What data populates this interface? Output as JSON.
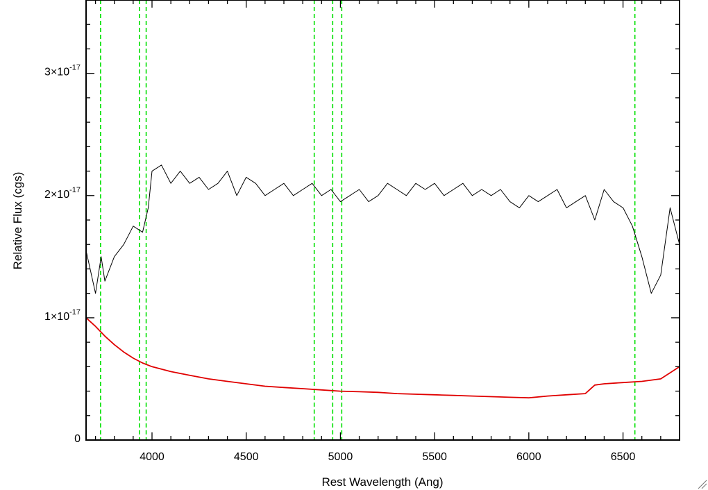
{
  "chart_data": {
    "type": "line",
    "xlabel": "Rest Wavelength (Ang)",
    "ylabel": "Relative Flux (cgs)",
    "xlim": [
      3650,
      6800
    ],
    "ylim": [
      0,
      3.6e-17
    ],
    "x_ticks": [
      4000,
      4500,
      5000,
      5500,
      6000,
      6500
    ],
    "x_tick_labels": [
      "4000",
      "4500",
      "5000",
      "5500",
      "6000",
      "6500"
    ],
    "y_ticks": [
      0,
      1e-17,
      2e-17,
      3e-17
    ],
    "y_tick_labels": [
      {
        "main": "0",
        "exp": ""
      },
      {
        "main": "1×10",
        "exp": "-17"
      },
      {
        "main": "2×10",
        "exp": "-17"
      },
      {
        "main": "3×10",
        "exp": "-17"
      }
    ],
    "colors": {
      "spectrum": "#000000",
      "model": "#e00000",
      "lines": "#00e000"
    },
    "line_markers": [
      3727,
      3933,
      3969,
      4861,
      4959,
      5007,
      6563
    ],
    "series": [
      {
        "color": "#000000",
        "x": [
          3650,
          3700,
          3730,
          3750,
          3800,
          3850,
          3900,
          3950,
          3980,
          4000,
          4050,
          4100,
          4150,
          4200,
          4250,
          4300,
          4350,
          4400,
          4450,
          4500,
          4550,
          4600,
          4650,
          4700,
          4750,
          4800,
          4850,
          4900,
          4950,
          5000,
          5050,
          5100,
          5150,
          5200,
          5250,
          5300,
          5350,
          5400,
          5450,
          5500,
          5550,
          5600,
          5650,
          5700,
          5750,
          5800,
          5850,
          5900,
          5950,
          6000,
          6050,
          6100,
          6150,
          6200,
          6250,
          6300,
          6350,
          6400,
          6450,
          6500,
          6550,
          6600,
          6650,
          6700,
          6750,
          6800
        ],
        "y": [
          1.55e-17,
          1.2e-17,
          1.5e-17,
          1.3e-17,
          1.5e-17,
          1.6e-17,
          1.75e-17,
          1.7e-17,
          1.9e-17,
          2.2e-17,
          2.25e-17,
          2.1e-17,
          2.2e-17,
          2.1e-17,
          2.15e-17,
          2.05e-17,
          2.1e-17,
          2.2e-17,
          2e-17,
          2.15e-17,
          2.1e-17,
          2e-17,
          2.05e-17,
          2.1e-17,
          2e-17,
          2.05e-17,
          2.1e-17,
          2e-17,
          2.05e-17,
          1.95e-17,
          2e-17,
          2.05e-17,
          1.95e-17,
          2e-17,
          2.1e-17,
          2.05e-17,
          2e-17,
          2.1e-17,
          2.05e-17,
          2.1e-17,
          2e-17,
          2.05e-17,
          2.1e-17,
          2e-17,
          2.05e-17,
          2e-17,
          2.05e-17,
          1.95e-17,
          1.9e-17,
          2e-17,
          1.95e-17,
          2e-17,
          2.05e-17,
          1.9e-17,
          1.95e-17,
          2e-17,
          1.8e-17,
          2.05e-17,
          1.95e-17,
          1.9e-17,
          1.75e-17,
          1.5e-17,
          1.2e-17,
          1.35e-17,
          1.9e-17,
          1.6e-17
        ]
      },
      {
        "color": "#e00000",
        "x": [
          3650,
          3700,
          3750,
          3800,
          3850,
          3900,
          3950,
          4000,
          4100,
          4200,
          4300,
          4400,
          4500,
          4600,
          4700,
          4800,
          4900,
          5000,
          5100,
          5200,
          5300,
          5400,
          5500,
          5600,
          5700,
          5800,
          5900,
          6000,
          6100,
          6200,
          6300,
          6350,
          6400,
          6500,
          6600,
          6700,
          6750,
          6800
        ],
        "y": [
          1e-17,
          9.3e-18,
          8.5e-18,
          7.8e-18,
          7.2e-18,
          6.7e-18,
          6.3e-18,
          6e-18,
          5.6e-18,
          5.3e-18,
          5e-18,
          4.8e-18,
          4.6e-18,
          4.4e-18,
          4.3e-18,
          4.2e-18,
          4.1e-18,
          4e-18,
          3.95e-18,
          3.9e-18,
          3.8e-18,
          3.75e-18,
          3.7e-18,
          3.65e-18,
          3.6e-18,
          3.55e-18,
          3.5e-18,
          3.45e-18,
          3.6e-18,
          3.7e-18,
          3.8e-18,
          4.5e-18,
          4.6e-18,
          4.7e-18,
          4.8e-18,
          5e-18,
          5.5e-18,
          6e-18
        ]
      }
    ]
  }
}
